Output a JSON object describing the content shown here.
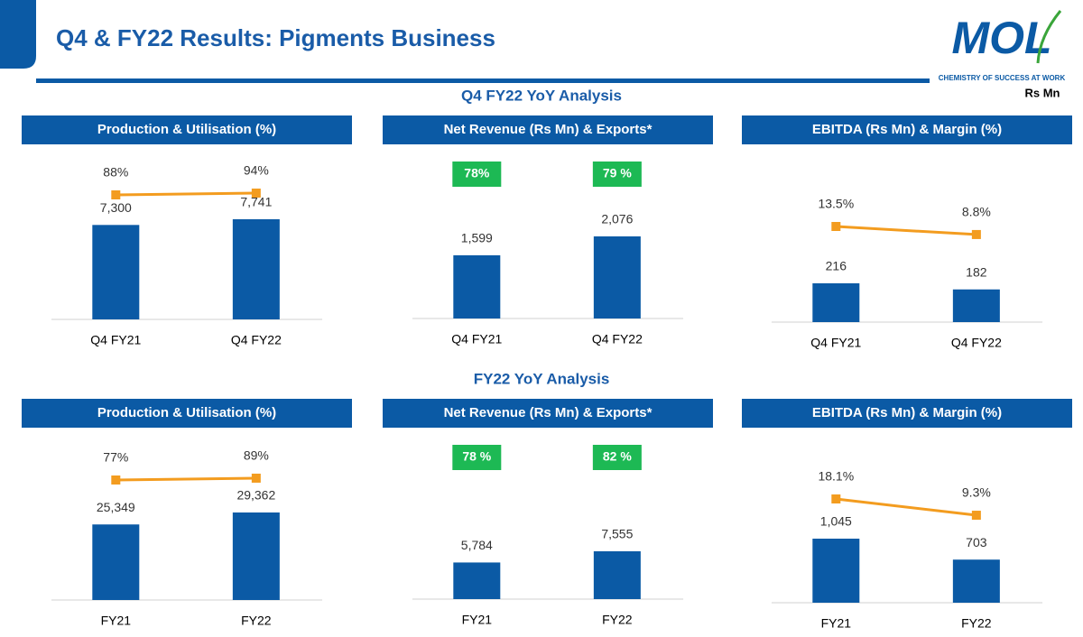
{
  "header": {
    "title": "Q4 & FY22 Results: Pigments Business"
  },
  "logo": {
    "name": "MOL",
    "tagline": "CHEMISTRY OF SUCCESS AT WORK"
  },
  "unit": "Rs Mn",
  "sections": [
    "Q4 FY22 YoY Analysis",
    "FY22 YoY Analysis"
  ],
  "chart_data": [
    {
      "type": "bar",
      "title": "Production & Utilisation (%)",
      "categories": [
        "Q4 FY21",
        "Q4 FY22"
      ],
      "series": [
        {
          "type": "bar",
          "color": "#0b5aa5",
          "values": [
            7300,
            7741
          ],
          "value_labels": [
            "7,300",
            "7,741"
          ]
        },
        {
          "type": "line",
          "color": "#f39c1f",
          "values": [
            88,
            94
          ],
          "value_labels": [
            "88%",
            "94%"
          ]
        }
      ]
    },
    {
      "type": "bar",
      "title": "Net Revenue (Rs Mn) & Exports*",
      "categories": [
        "Q4 FY21",
        "Q4 FY22"
      ],
      "series": [
        {
          "type": "bar",
          "color": "#0b5aa5",
          "values": [
            1599,
            2076
          ],
          "value_labels": [
            "1,599",
            "2,076"
          ]
        },
        {
          "type": "badge",
          "color": "#1db954",
          "values": [
            78,
            79
          ],
          "value_labels": [
            "78%",
            "79 %"
          ]
        }
      ]
    },
    {
      "type": "bar",
      "title": "EBITDA (Rs Mn) & Margin (%)",
      "categories": [
        "Q4 FY21",
        "Q4 FY22"
      ],
      "series": [
        {
          "type": "bar",
          "color": "#0b5aa5",
          "values": [
            216,
            182
          ]
        },
        {
          "type": "line",
          "color": "#f39c1f",
          "values": [
            13.5,
            8.8
          ],
          "value_labels": [
            "13.5%",
            "8.8%"
          ]
        }
      ]
    },
    {
      "type": "bar",
      "title": "Production & Utilisation (%)",
      "categories": [
        "FY21",
        "FY22"
      ],
      "series": [
        {
          "type": "bar",
          "color": "#0b5aa5",
          "values": [
            25349,
            29362
          ],
          "value_labels": [
            "25,349",
            "29,362"
          ]
        },
        {
          "type": "line",
          "color": "#f39c1f",
          "values": [
            77,
            89
          ],
          "value_labels": [
            "77%",
            "89%"
          ]
        }
      ]
    },
    {
      "type": "bar",
      "title": "Net Revenue (Rs Mn) & Exports*",
      "categories": [
        "FY21",
        "FY22"
      ],
      "series": [
        {
          "type": "bar",
          "color": "#0b5aa5",
          "values": [
            5784,
            7555
          ],
          "value_labels": [
            "5,784",
            "7,555"
          ]
        },
        {
          "type": "badge",
          "color": "#1db954",
          "values": [
            78,
            82
          ],
          "value_labels": [
            "78 %",
            "82 %"
          ]
        }
      ]
    },
    {
      "type": "bar",
      "title": "EBITDA (Rs Mn) & Margin (%)",
      "categories": [
        "FY21",
        "FY22"
      ],
      "series": [
        {
          "type": "bar",
          "color": "#0b5aa5",
          "values": [
            1045,
            703
          ],
          "value_labels": [
            "1,045",
            "703"
          ]
        },
        {
          "type": "line",
          "color": "#f39c1f",
          "values": [
            18.1,
            9.3
          ],
          "value_labels": [
            "18.1%",
            "9.3%"
          ]
        }
      ]
    }
  ]
}
